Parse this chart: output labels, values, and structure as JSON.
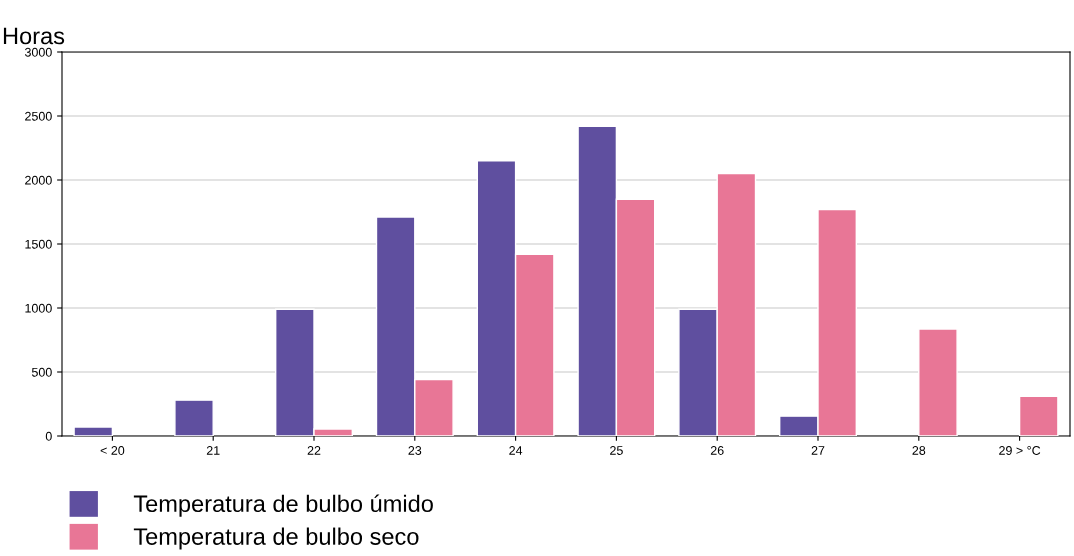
{
  "chart_data": {
    "type": "bar",
    "ylabel": "Horas",
    "categories": [
      "< 20",
      "21",
      "22",
      "23",
      "24",
      "25",
      "26",
      "27",
      "28",
      "29 > °C"
    ],
    "series": [
      {
        "name": "Temperatura de bulbo úmido",
        "color": "#5f4f9f",
        "values": [
          70,
          280,
          990,
          1710,
          2150,
          2420,
          990,
          155,
          null,
          null
        ]
      },
      {
        "name": "Temperatura de bulbo seco",
        "color": "#e87696",
        "values": [
          null,
          null,
          55,
          440,
          1420,
          1850,
          2050,
          1770,
          835,
          310
        ]
      }
    ],
    "ylim": [
      0,
      3000
    ],
    "yticks": [
      0,
      500,
      1000,
      1500,
      2000,
      2500,
      3000
    ],
    "grid": "y",
    "legend": "bottom left"
  }
}
